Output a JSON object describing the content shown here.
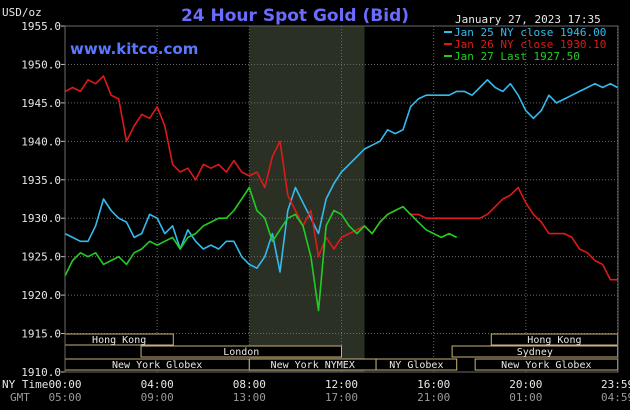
{
  "chart_data": {
    "type": "line",
    "title": "24 Hour Spot Gold (Bid)",
    "watermark": "www.kitco.com",
    "timestamp": "January 27, 2023 17:35",
    "ylabel": "USD/oz",
    "ylim": [
      1910,
      1955
    ],
    "yticks": [
      "1955.0",
      "1950.0",
      "1945.0",
      "1940.0",
      "1935.0",
      "1930.0",
      "1925.0",
      "1920.0",
      "1915.0",
      "1910.0"
    ],
    "xlim": [
      0,
      24
    ],
    "time_label_ny": "NY Time",
    "time_label_gmt": "GMT",
    "xticks_ny": [
      "00:00",
      "04:00",
      "08:00",
      "12:00",
      "16:00",
      "20:00",
      "23:59"
    ],
    "xticks_gmt": [
      "05:00",
      "09:00",
      "13:00",
      "17:00",
      "21:00",
      "01:00",
      "04:59"
    ],
    "highlight_range": [
      8,
      13
    ],
    "colors": {
      "background": "#000000",
      "grid": "#6a6a6a",
      "highlight": "#2a3024",
      "session_border": "#c8b27a"
    },
    "legend_position": "top-right",
    "series": [
      {
        "name": "Jan 25 NY close 1946.00",
        "color": "#33bbee",
        "x": [
          0.0,
          0.33,
          0.67,
          1.0,
          1.33,
          1.67,
          2.0,
          2.33,
          2.67,
          3.0,
          3.33,
          3.67,
          4.0,
          4.33,
          4.67,
          5.0,
          5.33,
          5.67,
          6.0,
          6.33,
          6.67,
          7.0,
          7.33,
          7.67,
          8.0,
          8.33,
          8.67,
          9.0,
          9.33,
          9.67,
          10.0,
          10.33,
          10.67,
          11.0,
          11.33,
          11.67,
          12.0,
          12.33,
          12.67,
          13.0,
          13.33,
          13.67,
          14.0,
          14.33,
          14.67,
          15.0,
          15.33,
          15.67,
          16.0,
          16.33,
          16.67,
          17.0,
          17.33,
          17.67,
          18.0,
          18.33,
          18.67,
          19.0,
          19.33,
          19.67,
          20.0,
          20.33,
          20.67,
          21.0,
          21.33,
          21.67,
          22.0,
          22.33,
          22.67,
          23.0,
          23.33,
          23.67,
          23.98
        ],
        "y": [
          1928.0,
          1927.5,
          1927.0,
          1927.0,
          1929.0,
          1932.5,
          1931.0,
          1930.0,
          1929.5,
          1927.5,
          1928.0,
          1930.5,
          1930.0,
          1928.0,
          1929.0,
          1926.0,
          1928.5,
          1927.0,
          1926.0,
          1926.5,
          1926.0,
          1927.0,
          1927.0,
          1925.0,
          1924.0,
          1923.5,
          1925.0,
          1928.0,
          1923.0,
          1931.0,
          1934.0,
          1932.0,
          1930.0,
          1928.0,
          1932.5,
          1934.5,
          1936.0,
          1937.0,
          1938.0,
          1939.0,
          1939.5,
          1940.0,
          1941.5,
          1941.0,
          1941.5,
          1944.5,
          1945.5,
          1946.0,
          1946.0,
          1946.0,
          1946.0,
          1946.5,
          1946.5,
          1946.0,
          1947.0,
          1948.0,
          1947.0,
          1946.5,
          1947.5,
          1946.0,
          1944.0,
          1943.0,
          1944.0,
          1946.0,
          1945.0,
          1945.5,
          1946.0,
          1946.5,
          1947.0,
          1947.5,
          1947.0,
          1947.5,
          1947.0
        ]
      },
      {
        "name": "Jan 26 NY close 1930.10",
        "color": "#dd1a1a",
        "x": [
          0.0,
          0.33,
          0.67,
          1.0,
          1.33,
          1.67,
          2.0,
          2.33,
          2.67,
          3.0,
          3.33,
          3.67,
          4.0,
          4.33,
          4.67,
          5.0,
          5.33,
          5.67,
          6.0,
          6.33,
          6.67,
          7.0,
          7.33,
          7.67,
          8.0,
          8.33,
          8.67,
          9.0,
          9.33,
          9.67,
          10.0,
          10.33,
          10.67,
          11.0,
          11.33,
          11.67,
          12.0,
          12.33,
          12.67,
          13.0,
          13.33,
          13.67,
          14.0,
          14.33,
          14.67,
          15.0,
          15.33,
          15.67,
          16.0,
          16.33,
          16.67,
          17.0,
          17.33,
          17.67,
          18.0,
          18.33,
          18.67,
          19.0,
          19.33,
          19.67,
          20.0,
          20.33,
          20.67,
          21.0,
          21.33,
          21.67,
          22.0,
          22.33,
          22.67,
          23.0,
          23.33,
          23.67,
          23.98
        ],
        "y": [
          1946.5,
          1947.0,
          1946.5,
          1948.0,
          1947.5,
          1948.5,
          1946.0,
          1945.5,
          1940.0,
          1942.0,
          1943.5,
          1943.0,
          1944.5,
          1942.0,
          1937.0,
          1936.0,
          1936.5,
          1935.0,
          1937.0,
          1936.5,
          1937.0,
          1936.0,
          1937.5,
          1936.0,
          1935.5,
          1936.0,
          1934.0,
          1938.0,
          1940.0,
          1933.0,
          1931.0,
          1929.0,
          1931.0,
          1925.0,
          1927.5,
          1926.0,
          1927.5,
          1928.0,
          1928.5,
          1929.0,
          1928.0,
          1929.5,
          1930.5,
          1931.0,
          1931.5,
          1930.5,
          1930.5,
          1930.0,
          1930.0,
          1930.0,
          1930.0,
          1930.0,
          1930.0,
          1930.0,
          1930.0,
          1930.5,
          1931.5,
          1932.5,
          1933.0,
          1934.0,
          1932.0,
          1930.5,
          1929.5,
          1928.0,
          1928.0,
          1928.0,
          1927.5,
          1926.0,
          1925.5,
          1924.5,
          1924.0,
          1922.0,
          1922.0
        ]
      },
      {
        "name": "Jan 27 Last 1927.50",
        "color": "#22cc22",
        "x": [
          0.0,
          0.33,
          0.67,
          1.0,
          1.33,
          1.67,
          2.0,
          2.33,
          2.67,
          3.0,
          3.33,
          3.67,
          4.0,
          4.33,
          4.67,
          5.0,
          5.33,
          5.67,
          6.0,
          6.33,
          6.67,
          7.0,
          7.33,
          7.67,
          8.0,
          8.33,
          8.67,
          9.0,
          9.33,
          9.67,
          10.0,
          10.33,
          10.67,
          11.0,
          11.33,
          11.67,
          12.0,
          12.33,
          12.67,
          13.0,
          13.33,
          13.67,
          14.0,
          14.33,
          14.67,
          15.0,
          15.33,
          15.67,
          16.0,
          16.33,
          16.67,
          17.0
        ],
        "y": [
          1922.5,
          1924.5,
          1925.5,
          1925.0,
          1925.5,
          1924.0,
          1924.5,
          1925.0,
          1924.0,
          1925.5,
          1926.0,
          1927.0,
          1926.5,
          1927.0,
          1927.5,
          1926.0,
          1927.5,
          1928.0,
          1929.0,
          1929.5,
          1930.0,
          1930.0,
          1931.0,
          1932.5,
          1934.0,
          1931.0,
          1930.0,
          1927.0,
          1928.5,
          1930.0,
          1930.5,
          1929.0,
          1925.0,
          1918.0,
          1929.0,
          1931.0,
          1930.5,
          1929.0,
          1928.0,
          1929.0,
          1928.0,
          1929.5,
          1930.5,
          1931.0,
          1931.5,
          1930.5,
          1929.5,
          1928.5,
          1928.0,
          1927.5,
          1928.0,
          1927.5
        ]
      }
    ],
    "sessions": [
      {
        "label": "Hong Kong",
        "start": 0,
        "end": 4.7,
        "row": 0
      },
      {
        "label": "London",
        "start": 3.3,
        "end": 12.0,
        "row": 1
      },
      {
        "label": "New York Globex",
        "start": 0,
        "end": 8.0,
        "row": 2
      },
      {
        "label": "New York NYMEX",
        "start": 8.0,
        "end": 13.5,
        "row": 2
      },
      {
        "label": "NY Globex",
        "start": 13.5,
        "end": 17.0,
        "row": 2
      },
      {
        "label": "Hong Kong",
        "start": 18.5,
        "end": 23.98,
        "row": 0
      },
      {
        "label": "Sydney",
        "start": 16.8,
        "end": 23.98,
        "row": 1
      },
      {
        "label": "New York Globex",
        "start": 17.8,
        "end": 23.98,
        "row": 2
      }
    ]
  }
}
